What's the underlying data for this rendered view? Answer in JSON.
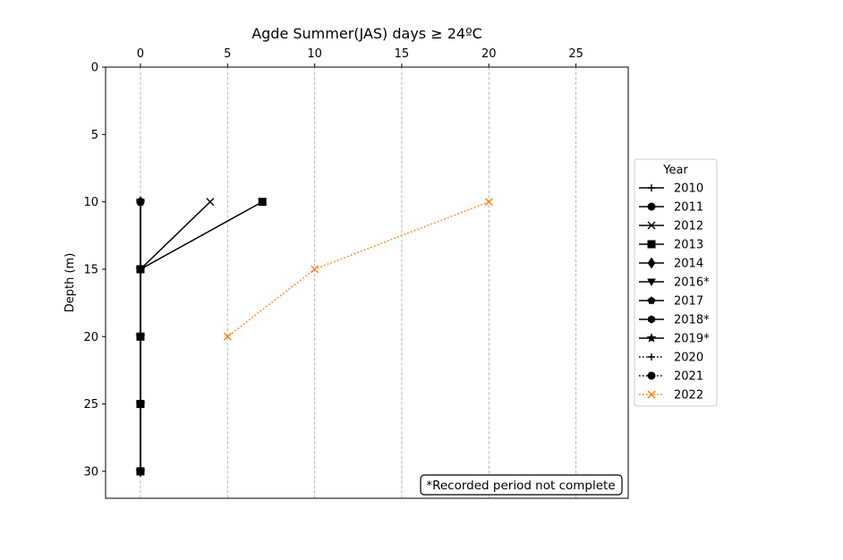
{
  "chart_data": {
    "type": "line",
    "title": "Agde Summer(JAS) days ≥ 24ºC",
    "xlabel": "",
    "ylabel": "Depth (m)",
    "xlim": [
      -2,
      28
    ],
    "ylim": [
      32,
      0
    ],
    "x_axis_position": "top",
    "y_inverted": true,
    "xticks": [
      0,
      5,
      10,
      15,
      20,
      25
    ],
    "yticks": [
      0,
      5,
      10,
      15,
      20,
      25,
      30
    ],
    "grid": "vertical-dashed",
    "legend": {
      "title": "Year",
      "placement": "outside-right"
    },
    "annotation": "*Recorded period not complete",
    "series": [
      {
        "name": "2010",
        "color": "#000000",
        "linestyle": "solid",
        "marker": "plus",
        "points": [
          [
            0,
            10
          ],
          [
            0,
            15
          ],
          [
            0,
            20
          ],
          [
            0,
            25
          ],
          [
            0,
            30
          ]
        ]
      },
      {
        "name": "2011",
        "color": "#000000",
        "linestyle": "solid",
        "marker": "circle",
        "points": [
          [
            0,
            10
          ],
          [
            0,
            15
          ],
          [
            0,
            20
          ],
          [
            0,
            25
          ],
          [
            0,
            30
          ]
        ]
      },
      {
        "name": "2012",
        "color": "#000000",
        "linestyle": "solid",
        "marker": "x",
        "points": [
          [
            4,
            10
          ],
          [
            0,
            15
          ],
          [
            0,
            20
          ],
          [
            0,
            25
          ],
          [
            0,
            30
          ]
        ]
      },
      {
        "name": "2013",
        "color": "#000000",
        "linestyle": "solid",
        "marker": "square",
        "points": [
          [
            7,
            10
          ],
          [
            0,
            15
          ],
          [
            0,
            20
          ],
          [
            0,
            25
          ],
          [
            0,
            30
          ]
        ]
      },
      {
        "name": "2014",
        "color": "#000000",
        "linestyle": "solid",
        "marker": "diamond",
        "points": [
          [
            0,
            10
          ],
          [
            0,
            15
          ],
          [
            0,
            20
          ],
          [
            0,
            25
          ],
          [
            0,
            30
          ]
        ]
      },
      {
        "name": "2016*",
        "color": "#000000",
        "linestyle": "solid",
        "marker": "triangle-down",
        "points": [
          [
            0,
            10
          ],
          [
            0,
            15
          ],
          [
            0,
            20
          ],
          [
            0,
            25
          ],
          [
            0,
            30
          ]
        ]
      },
      {
        "name": "2017",
        "color": "#000000",
        "linestyle": "solid",
        "marker": "pentagon",
        "points": [
          [
            0,
            10
          ],
          [
            0,
            15
          ],
          [
            0,
            20
          ],
          [
            0,
            25
          ],
          [
            0,
            30
          ]
        ]
      },
      {
        "name": "2018*",
        "color": "#000000",
        "linestyle": "solid",
        "marker": "hexagon",
        "points": [
          [
            0,
            10
          ],
          [
            0,
            15
          ],
          [
            0,
            20
          ],
          [
            0,
            25
          ],
          [
            0,
            30
          ]
        ]
      },
      {
        "name": "2019*",
        "color": "#000000",
        "linestyle": "solid",
        "marker": "star",
        "points": [
          [
            0,
            10
          ],
          [
            0,
            15
          ],
          [
            0,
            20
          ],
          [
            0,
            25
          ],
          [
            0,
            30
          ]
        ]
      },
      {
        "name": "2020",
        "color": "#000000",
        "linestyle": "dotted",
        "marker": "plus",
        "points": [
          [
            0,
            10
          ],
          [
            0,
            15
          ],
          [
            0,
            20
          ],
          [
            0,
            25
          ],
          [
            0,
            30
          ]
        ]
      },
      {
        "name": "2021",
        "color": "#000000",
        "linestyle": "dotted",
        "marker": "circle",
        "points": [
          [
            0,
            10
          ],
          [
            0,
            15
          ],
          [
            0,
            20
          ],
          [
            0,
            25
          ],
          [
            0,
            30
          ]
        ]
      },
      {
        "name": "2022",
        "color": "#ff7f0e",
        "linestyle": "dotted",
        "marker": "x",
        "points": [
          [
            20,
            10
          ],
          [
            10,
            15
          ],
          [
            5,
            20
          ]
        ]
      }
    ]
  }
}
